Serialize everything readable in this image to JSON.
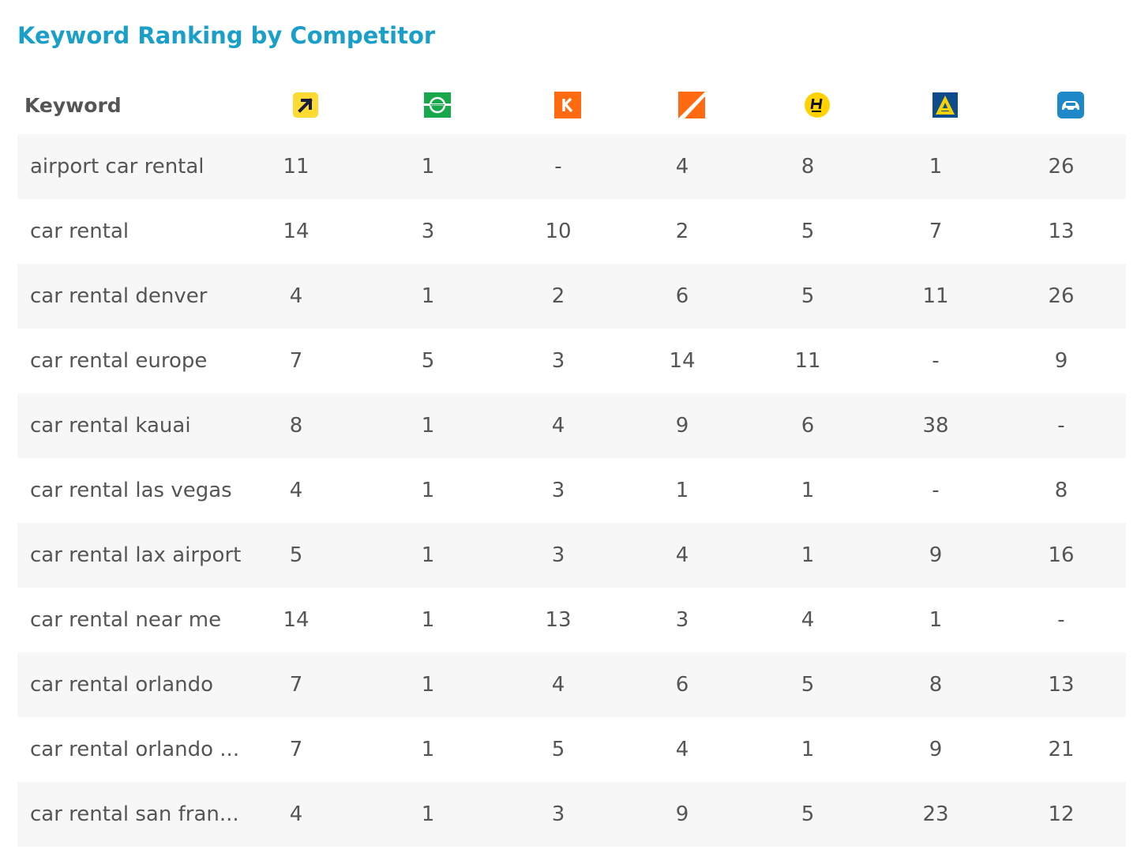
{
  "title": "Keyword Ranking by Competitor",
  "table": {
    "keyword_header": "Keyword",
    "competitors": [
      {
        "icon": "expedia-arrow-icon",
        "color": "#fddb32"
      },
      {
        "icon": "enterprise-e-icon",
        "color": "#16a84b"
      },
      {
        "icon": "kayak-k-icon",
        "color": "#ff690f"
      },
      {
        "icon": "orange-slash-logo-icon",
        "color": "#ff6a13"
      },
      {
        "icon": "hertz-h-icon",
        "color": "#ffd200"
      },
      {
        "icon": "alamo-a-icon",
        "color": "#0c4c8c"
      },
      {
        "icon": "blue-car-icon",
        "color": "#1e88c9"
      }
    ],
    "rows": [
      {
        "keyword": "airport car rental",
        "values": [
          "11",
          "1",
          "-",
          "4",
          "8",
          "1",
          "26"
        ]
      },
      {
        "keyword": "car rental",
        "values": [
          "14",
          "3",
          "10",
          "2",
          "5",
          "7",
          "13"
        ]
      },
      {
        "keyword": "car rental denver",
        "values": [
          "4",
          "1",
          "2",
          "6",
          "5",
          "11",
          "26"
        ]
      },
      {
        "keyword": "car rental europe",
        "values": [
          "7",
          "5",
          "3",
          "14",
          "11",
          "-",
          "9"
        ]
      },
      {
        "keyword": "car rental kauai",
        "values": [
          "8",
          "1",
          "4",
          "9",
          "6",
          "38",
          "-"
        ]
      },
      {
        "keyword": "car rental las vegas",
        "values": [
          "4",
          "1",
          "3",
          "1",
          "1",
          "-",
          "8"
        ]
      },
      {
        "keyword": "car rental lax airport",
        "values": [
          "5",
          "1",
          "3",
          "4",
          "1",
          "9",
          "16"
        ]
      },
      {
        "keyword": "car rental near me",
        "values": [
          "14",
          "1",
          "13",
          "3",
          "4",
          "1",
          "-"
        ]
      },
      {
        "keyword": "car rental orlando",
        "values": [
          "7",
          "1",
          "4",
          "6",
          "5",
          "8",
          "13"
        ]
      },
      {
        "keyword": "car rental orlando ...",
        "values": [
          "7",
          "1",
          "5",
          "4",
          "1",
          "9",
          "21"
        ]
      },
      {
        "keyword": "car rental san fran...",
        "values": [
          "4",
          "1",
          "3",
          "9",
          "5",
          "23",
          "12"
        ]
      }
    ]
  }
}
